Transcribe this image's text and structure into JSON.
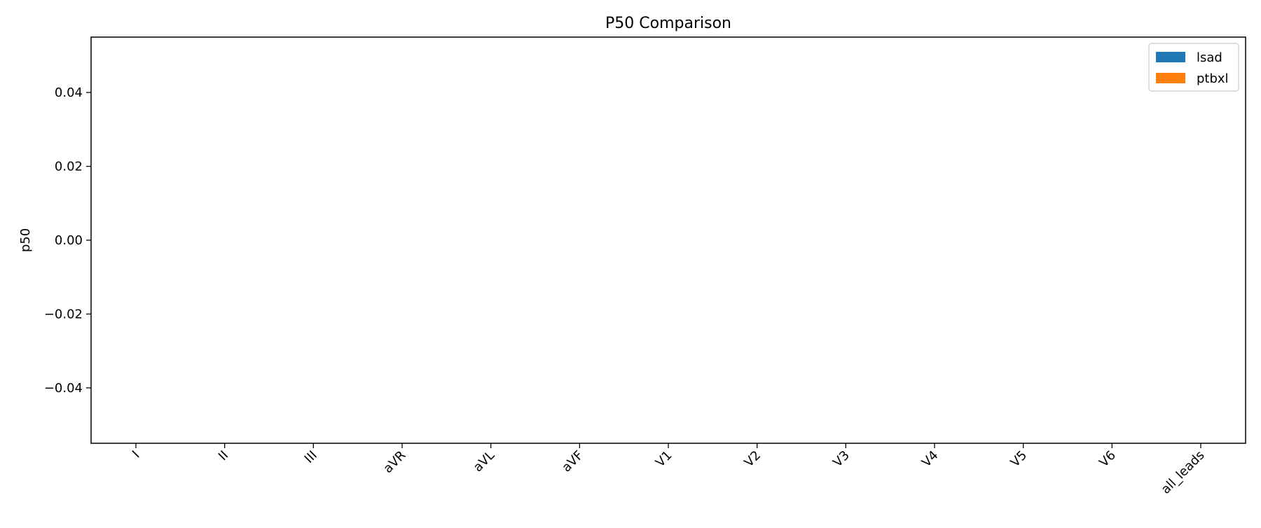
{
  "chart_data": {
    "type": "bar",
    "title": "P50 Comparison",
    "xlabel": "",
    "ylabel": "p50",
    "categories": [
      "I",
      "II",
      "III",
      "aVR",
      "aVL",
      "aVF",
      "V1",
      "V2",
      "V3",
      "V4",
      "V5",
      "V6",
      "all_leads"
    ],
    "series": [
      {
        "name": "lsad",
        "color": "#1f77b4",
        "values": [
          0,
          0,
          0,
          0,
          0,
          0,
          0,
          0,
          0,
          0,
          0,
          0,
          0
        ]
      },
      {
        "name": "ptbxl",
        "color": "#ff7f0e",
        "values": [
          0,
          0,
          0,
          0,
          0,
          0,
          0,
          0,
          0,
          0,
          0,
          0,
          0
        ]
      }
    ],
    "ylim": [
      -0.055,
      0.055
    ],
    "yticks": [
      "0.04",
      "0.02",
      "0.00",
      "−0.02",
      "−0.04"
    ],
    "ytick_values": [
      0.04,
      0.02,
      0.0,
      -0.02,
      -0.04
    ],
    "legend_position": "top-right",
    "grid": false
  }
}
